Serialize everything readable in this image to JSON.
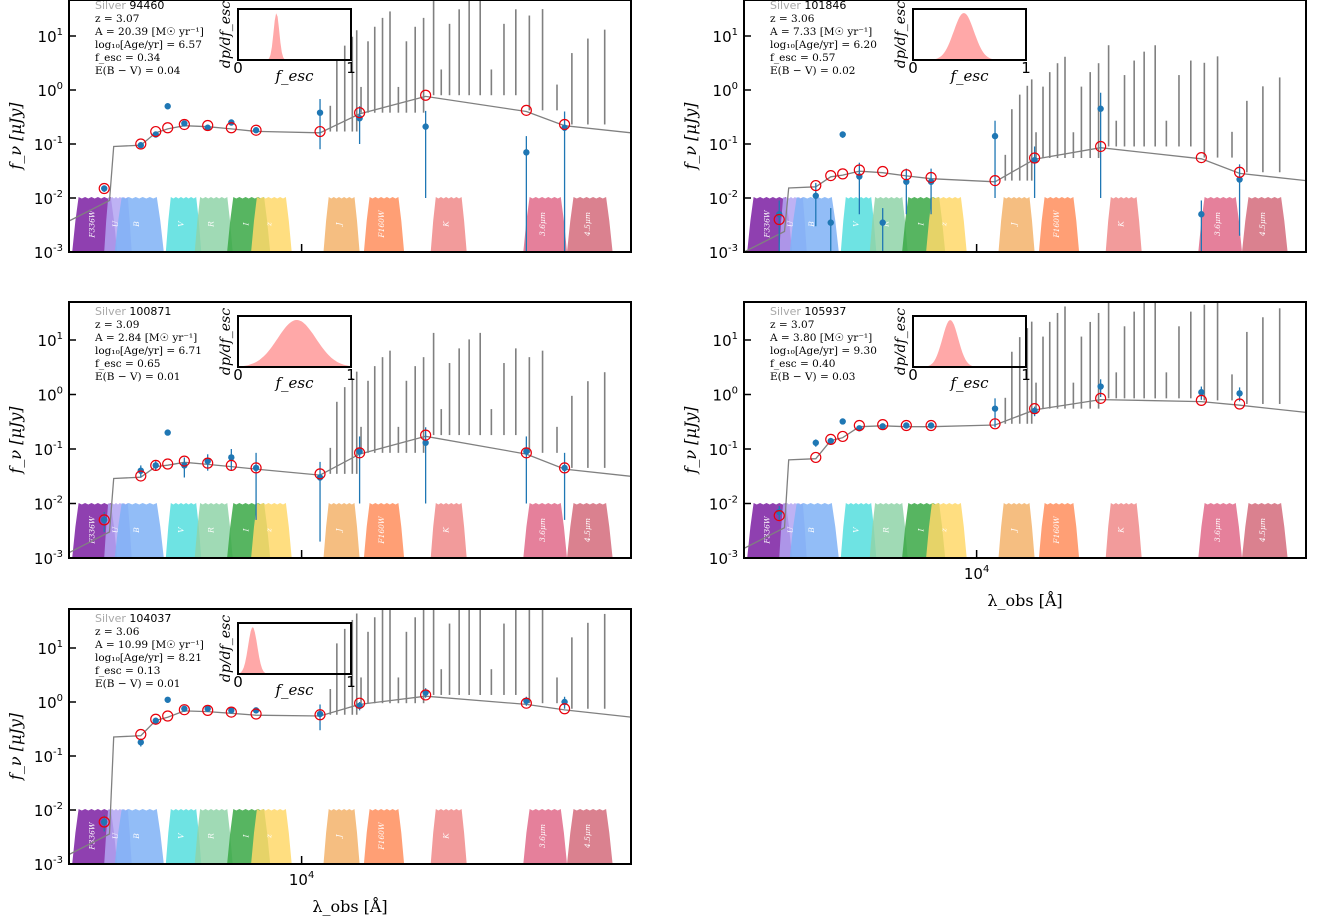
{
  "figure": {
    "ylabel": "f_ν [μJy]",
    "xlabel": "λ_obs [Å]",
    "xtick_label": "10^4",
    "ytick_labels": [
      "10^1",
      "10^0",
      "10^-1",
      "10^-2",
      "10^-3"
    ],
    "inset_ylabel": "dp/df_esc",
    "inset_xlabel": "f_esc",
    "inset_ticks": [
      "0",
      "1"
    ],
    "colors": {
      "model_line": "#808080",
      "observed_points": "#1f77b4",
      "model_photometry": "#e8000b",
      "pdf_fill": "#ff9999"
    }
  },
  "chart_data": [
    {
      "type": "scatter",
      "sample": "Silver",
      "id": "94460",
      "z": "z = 3.07",
      "A": "A = 20.39 [M☉ yr⁻¹]",
      "age": "log₁₀[Age/yr] = 6.57",
      "fesc": "f_esc = 0.34",
      "ebv": "E(B − V) = 0.04",
      "pdf_peak": 0.34,
      "pdf_width": 0.025,
      "yscale": "log",
      "ylim": [
        0.001,
        50
      ],
      "observed": [
        {
          "lambda": 3600,
          "f": 0.015,
          "err": 0.002
        },
        {
          "lambda": 4350,
          "f": 0.095,
          "err": 0.01
        },
        {
          "lambda": 4700,
          "f": 0.15,
          "err": 0.015
        },
        {
          "lambda": 5000,
          "f": 0.5,
          "err": 0.0
        },
        {
          "lambda": 5450,
          "f": 0.24,
          "err": 0.02
        },
        {
          "lambda": 6150,
          "f": 0.2,
          "err": 0.02
        },
        {
          "lambda": 6950,
          "f": 0.25,
          "err": 0.02
        },
        {
          "lambda": 7900,
          "f": 0.18,
          "err": 0.02
        },
        {
          "lambda": 11000,
          "f": 0.38,
          "err": 0.3
        },
        {
          "lambda": 13500,
          "f": 0.3,
          "err": 0.2
        },
        {
          "lambda": 19000,
          "f": 0.21,
          "err": 0.2
        },
        {
          "lambda": 32000,
          "f": 0.07,
          "err": 0.07
        },
        {
          "lambda": 39000,
          "f": 0.2,
          "err": 0.2
        }
      ],
      "model_phot": [
        {
          "lambda": 3600,
          "f": 0.015
        },
        {
          "lambda": 4350,
          "f": 0.1
        },
        {
          "lambda": 4700,
          "f": 0.17
        },
        {
          "lambda": 5000,
          "f": 0.2
        },
        {
          "lambda": 5450,
          "f": 0.23
        },
        {
          "lambda": 6150,
          "f": 0.22
        },
        {
          "lambda": 6950,
          "f": 0.2
        },
        {
          "lambda": 7900,
          "f": 0.18
        },
        {
          "lambda": 11000,
          "f": 0.17
        },
        {
          "lambda": 13500,
          "f": 0.38
        },
        {
          "lambda": 19000,
          "f": 0.8
        },
        {
          "lambda": 32000,
          "f": 0.42
        },
        {
          "lambda": 39000,
          "f": 0.23
        }
      ]
    },
    {
      "type": "scatter",
      "sample": "Silver",
      "id": "101846",
      "z": "z = 3.06",
      "A": "A = 7.33 [M☉ yr⁻¹]",
      "age": "log₁₀[Age/yr] = 6.20",
      "fesc": "f_esc = 0.57",
      "ebv": "E(B − V) = 0.02",
      "pdf_peak": 0.45,
      "pdf_width": 0.09,
      "yscale": "log",
      "ylim": [
        0.001,
        50
      ],
      "observed": [
        {
          "lambda": 3600,
          "f": 0.005,
          "err": 0.004
        },
        {
          "lambda": 4350,
          "f": 0.011,
          "err": 0.008
        },
        {
          "lambda": 4700,
          "f": 0.0035,
          "err": 0.003
        },
        {
          "lambda": 5000,
          "f": 0.15,
          "err": 0.02
        },
        {
          "lambda": 5450,
          "f": 0.025,
          "err": 0.02
        },
        {
          "lambda": 6150,
          "f": 0.0035,
          "err": 0.003
        },
        {
          "lambda": 6950,
          "f": 0.02,
          "err": 0.015
        },
        {
          "lambda": 7900,
          "f": 0.02,
          "err": 0.015
        },
        {
          "lambda": 11000,
          "f": 0.14,
          "err": 0.13
        },
        {
          "lambda": 13500,
          "f": 0.05,
          "err": 0.04
        },
        {
          "lambda": 19000,
          "f": 0.45,
          "err": 0.44
        },
        {
          "lambda": 32000,
          "f": 0.005,
          "err": 0.004
        },
        {
          "lambda": 39000,
          "f": 0.022,
          "err": 0.02
        }
      ],
      "model_phot": [
        {
          "lambda": 3600,
          "f": 0.004
        },
        {
          "lambda": 4350,
          "f": 0.017
        },
        {
          "lambda": 4700,
          "f": 0.026
        },
        {
          "lambda": 5000,
          "f": 0.028
        },
        {
          "lambda": 5450,
          "f": 0.033
        },
        {
          "lambda": 6150,
          "f": 0.031
        },
        {
          "lambda": 6950,
          "f": 0.027
        },
        {
          "lambda": 7900,
          "f": 0.024
        },
        {
          "lambda": 11000,
          "f": 0.021
        },
        {
          "lambda": 13500,
          "f": 0.055
        },
        {
          "lambda": 19000,
          "f": 0.09
        },
        {
          "lambda": 32000,
          "f": 0.056
        },
        {
          "lambda": 39000,
          "f": 0.03
        }
      ]
    },
    {
      "type": "scatter",
      "sample": "Silver",
      "id": "100871",
      "z": "z = 3.09",
      "A": "A = 2.84 [M☉ yr⁻¹]",
      "age": "log₁₀[Age/yr] = 6.71",
      "fesc": "f_esc = 0.65",
      "ebv": "E(B − V) = 0.01",
      "pdf_peak": 0.52,
      "pdf_width": 0.17,
      "yscale": "log",
      "ylim": [
        0.001,
        50
      ],
      "observed": [
        {
          "lambda": 3600,
          "f": 0.005,
          "err": 0.002
        },
        {
          "lambda": 4350,
          "f": 0.04,
          "err": 0.01
        },
        {
          "lambda": 4700,
          "f": 0.05,
          "err": 0.01
        },
        {
          "lambda": 5000,
          "f": 0.2,
          "err": 0.02
        },
        {
          "lambda": 5450,
          "f": 0.05,
          "err": 0.02
        },
        {
          "lambda": 6150,
          "f": 0.06,
          "err": 0.02
        },
        {
          "lambda": 6950,
          "f": 0.07,
          "err": 0.03
        },
        {
          "lambda": 7900,
          "f": 0.045,
          "err": 0.04
        },
        {
          "lambda": 11000,
          "f": 0.03,
          "err": 0.028
        },
        {
          "lambda": 13500,
          "f": 0.09,
          "err": 0.08
        },
        {
          "lambda": 19000,
          "f": 0.13,
          "err": 0.12
        },
        {
          "lambda": 32000,
          "f": 0.09,
          "err": 0.08
        },
        {
          "lambda": 39000,
          "f": 0.045,
          "err": 0.04
        }
      ],
      "model_phot": [
        {
          "lambda": 3600,
          "f": 0.005
        },
        {
          "lambda": 4350,
          "f": 0.032
        },
        {
          "lambda": 4700,
          "f": 0.05
        },
        {
          "lambda": 5000,
          "f": 0.053
        },
        {
          "lambda": 5450,
          "f": 0.06
        },
        {
          "lambda": 6150,
          "f": 0.055
        },
        {
          "lambda": 6950,
          "f": 0.05
        },
        {
          "lambda": 7900,
          "f": 0.045
        },
        {
          "lambda": 11000,
          "f": 0.035
        },
        {
          "lambda": 13500,
          "f": 0.085
        },
        {
          "lambda": 19000,
          "f": 0.18
        },
        {
          "lambda": 32000,
          "f": 0.085
        },
        {
          "lambda": 39000,
          "f": 0.045
        }
      ]
    },
    {
      "type": "scatter",
      "sample": "Silver",
      "id": "105937",
      "z": "z = 3.07",
      "A": "A = 3.80 [M☉ yr⁻¹]",
      "age": "log₁₀[Age/yr] = 9.30",
      "fesc": "f_esc = 0.40",
      "ebv": "E(B − V) = 0.03",
      "pdf_peak": 0.33,
      "pdf_width": 0.07,
      "yscale": "log",
      "ylim": [
        0.001,
        50
      ],
      "observed": [
        {
          "lambda": 3600,
          "f": 0.007,
          "err": 0.002
        },
        {
          "lambda": 4350,
          "f": 0.13,
          "err": 0.02
        },
        {
          "lambda": 4700,
          "f": 0.14,
          "err": 0.02
        },
        {
          "lambda": 5000,
          "f": 0.32,
          "err": 0.02
        },
        {
          "lambda": 5450,
          "f": 0.24,
          "err": 0.02
        },
        {
          "lambda": 6150,
          "f": 0.26,
          "err": 0.02
        },
        {
          "lambda": 6950,
          "f": 0.27,
          "err": 0.02
        },
        {
          "lambda": 7900,
          "f": 0.27,
          "err": 0.02
        },
        {
          "lambda": 11000,
          "f": 0.55,
          "err": 0.3
        },
        {
          "lambda": 13500,
          "f": 0.5,
          "err": 0.1
        },
        {
          "lambda": 19000,
          "f": 1.4,
          "err": 0.5
        },
        {
          "lambda": 32000,
          "f": 1.1,
          "err": 0.3
        },
        {
          "lambda": 39000,
          "f": 1.05,
          "err": 0.3
        }
      ],
      "model_phot": [
        {
          "lambda": 3600,
          "f": 0.006
        },
        {
          "lambda": 4350,
          "f": 0.07
        },
        {
          "lambda": 4700,
          "f": 0.15
        },
        {
          "lambda": 5000,
          "f": 0.17
        },
        {
          "lambda": 5450,
          "f": 0.27
        },
        {
          "lambda": 6150,
          "f": 0.28
        },
        {
          "lambda": 6950,
          "f": 0.27
        },
        {
          "lambda": 7900,
          "f": 0.27
        },
        {
          "lambda": 11000,
          "f": 0.29
        },
        {
          "lambda": 13500,
          "f": 0.55
        },
        {
          "lambda": 19000,
          "f": 0.85
        },
        {
          "lambda": 32000,
          "f": 0.78
        },
        {
          "lambda": 39000,
          "f": 0.67
        }
      ]
    },
    {
      "type": "scatter",
      "sample": "Silver",
      "id": "104037",
      "z": "z = 3.06",
      "A": "A = 10.99 [M☉ yr⁻¹]",
      "age": "log₁₀[Age/yr] = 8.21",
      "fesc": "f_esc = 0.13",
      "ebv": "E(B − V) = 0.01",
      "pdf_peak": 0.13,
      "pdf_width": 0.04,
      "yscale": "log",
      "ylim": [
        0.001,
        50
      ],
      "observed": [
        {
          "lambda": 3600,
          "f": 0.006,
          "err": 0.002
        },
        {
          "lambda": 4350,
          "f": 0.18,
          "err": 0.03
        },
        {
          "lambda": 4700,
          "f": 0.45,
          "err": 0.05
        },
        {
          "lambda": 5000,
          "f": 1.1,
          "err": 0.05
        },
        {
          "lambda": 5450,
          "f": 0.75,
          "err": 0.05
        },
        {
          "lambda": 6150,
          "f": 0.75,
          "err": 0.05
        },
        {
          "lambda": 6950,
          "f": 0.7,
          "err": 0.05
        },
        {
          "lambda": 7900,
          "f": 0.7,
          "err": 0.05
        },
        {
          "lambda": 11000,
          "f": 0.6,
          "err": 0.3
        },
        {
          "lambda": 13500,
          "f": 0.85,
          "err": 0.15
        },
        {
          "lambda": 19000,
          "f": 1.5,
          "err": 0.3
        },
        {
          "lambda": 32000,
          "f": 1.05,
          "err": 0.2
        },
        {
          "lambda": 39000,
          "f": 1.0,
          "err": 0.25
        }
      ],
      "model_phot": [
        {
          "lambda": 3600,
          "f": 0.006
        },
        {
          "lambda": 4350,
          "f": 0.25
        },
        {
          "lambda": 4700,
          "f": 0.48
        },
        {
          "lambda": 5000,
          "f": 0.55
        },
        {
          "lambda": 5450,
          "f": 0.72
        },
        {
          "lambda": 6150,
          "f": 0.7
        },
        {
          "lambda": 6950,
          "f": 0.65
        },
        {
          "lambda": 7900,
          "f": 0.6
        },
        {
          "lambda": 11000,
          "f": 0.58
        },
        {
          "lambda": 13500,
          "f": 0.95
        },
        {
          "lambda": 19000,
          "f": 1.35
        },
        {
          "lambda": 32000,
          "f": 0.95
        },
        {
          "lambda": 39000,
          "f": 0.75
        }
      ]
    }
  ],
  "filters": [
    {
      "label": "F336W",
      "lo": 3050,
      "hi": 3850,
      "color": "#7b1fa2"
    },
    {
      "label": "U",
      "lo": 3600,
      "hi": 4150,
      "color": "#b3a4f2"
    },
    {
      "label": "B",
      "lo": 3800,
      "hi": 4900,
      "color": "#7fb2f6"
    },
    {
      "label": "V",
      "lo": 4950,
      "hi": 5950,
      "color": "#55dede"
    },
    {
      "label": "R",
      "lo": 5750,
      "hi": 7000,
      "color": "#8fd3a8"
    },
    {
      "label": "I",
      "lo": 6800,
      "hi": 8500,
      "color": "#3aa845"
    },
    {
      "label": "z",
      "lo": 7700,
      "hi": 9500,
      "color": "#ffd86a"
    },
    {
      "label": "J",
      "lo": 11200,
      "hi": 13500,
      "color": "#f3b36b"
    },
    {
      "label": "F160W",
      "lo": 13800,
      "hi": 17000,
      "color": "#ff8e5d"
    },
    {
      "label": "K",
      "lo": 19500,
      "hi": 23500,
      "color": "#f08a8a"
    },
    {
      "label": "3.6μm",
      "lo": 31500,
      "hi": 39500,
      "color": "#e06a8a"
    },
    {
      "label": "4.5μm",
      "lo": 39500,
      "hi": 50000,
      "color": "#d46b7b"
    }
  ]
}
